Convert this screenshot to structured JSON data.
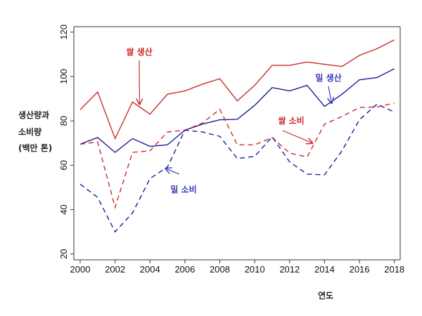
{
  "chart_data": {
    "type": "line",
    "title": "",
    "xlabel": "연도",
    "ylabel": [
      "생산량과",
      "소비량",
      "(백만 톤)"
    ],
    "xlim": [
      2000,
      2018
    ],
    "ylim": [
      20,
      120
    ],
    "x_ticks": [
      2000,
      2002,
      2004,
      2006,
      2008,
      2010,
      2012,
      2014,
      2016,
      2018
    ],
    "y_ticks": [
      20,
      40,
      60,
      80,
      100,
      120
    ],
    "grid": false,
    "x": [
      2000,
      2001,
      2002,
      2003,
      2004,
      2005,
      2006,
      2007,
      2008,
      2009,
      2010,
      2011,
      2012,
      2013,
      2014,
      2015,
      2016,
      2017,
      2018
    ],
    "series": [
      {
        "name": "쌀 생산",
        "color": "#cc2a2a",
        "style": "solid",
        "values": [
          85,
          93,
          72,
          88.5,
          83,
          92,
          93.5,
          96.5,
          99,
          89,
          96,
          105,
          105,
          106.5,
          105.5,
          104.5,
          109.5,
          112.5,
          116.5
        ]
      },
      {
        "name": "밀 생산",
        "color": "#1a1aa0",
        "style": "solid",
        "values": [
          69.5,
          72.5,
          65.8,
          72,
          68.5,
          69.2,
          75.8,
          78.5,
          80.5,
          80.7,
          87,
          95,
          93.5,
          96,
          86.5,
          92,
          98.5,
          99.5,
          103.5
        ]
      },
      {
        "name": "쌀 소비",
        "color": "#cc2a2a",
        "style": "dashed",
        "values": [
          69.5,
          70.5,
          41,
          65.8,
          66.5,
          75,
          75.8,
          79,
          85.2,
          69.2,
          69.2,
          72.5,
          65.5,
          63.7,
          78.5,
          82,
          86,
          86.3,
          88
        ]
      },
      {
        "name": "밀 소비",
        "color": "#1a1aa0",
        "style": "dashed",
        "values": [
          51.5,
          45.5,
          30,
          38.5,
          54,
          59.2,
          75.8,
          75,
          73,
          63,
          64,
          72.8,
          61.5,
          56,
          55.7,
          66.5,
          80.5,
          87.5,
          84
        ]
      }
    ],
    "annotations": [
      {
        "text": "쌀 생산",
        "color": "#cc2a2a",
        "points_to": [
          2003.4,
          87.5
        ]
      },
      {
        "text": "밀 생산",
        "color": "#3a3ab8",
        "points_to": [
          2014.4,
          88
        ]
      },
      {
        "text": "쌀 소비",
        "color": "#cc2a2a",
        "points_to": [
          2013.3,
          70
        ]
      },
      {
        "text": "밀 소비",
        "color": "#3a3ab8",
        "points_to": [
          2004.9,
          58.5
        ]
      }
    ]
  }
}
